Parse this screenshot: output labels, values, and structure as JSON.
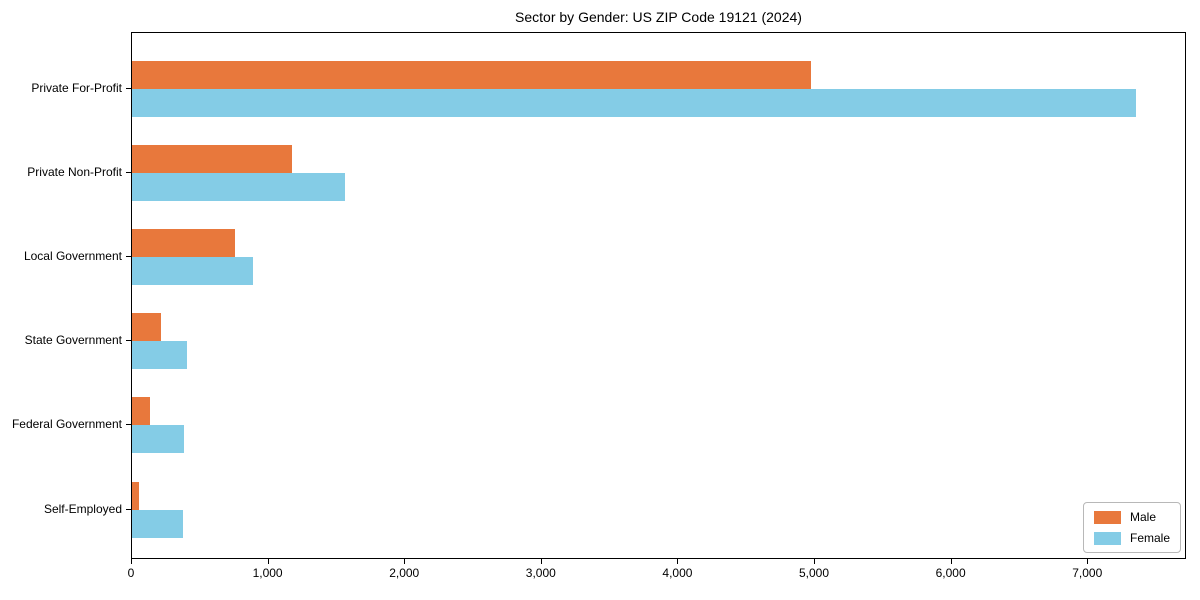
{
  "chart_data": {
    "type": "bar",
    "orientation": "horizontal",
    "title": "Sector by Gender: US ZIP Code 19121 (2024)",
    "categories": [
      "Private For-Profit",
      "Private Non-Profit",
      "Local Government",
      "State Government",
      "Federal Government",
      "Self-Employed"
    ],
    "series": [
      {
        "name": "Male",
        "color": "#E8783C",
        "values": [
          4980,
          1170,
          755,
          215,
          130,
          55
        ]
      },
      {
        "name": "Female",
        "color": "#84CCE6",
        "values": [
          7360,
          1560,
          885,
          400,
          380,
          375
        ]
      }
    ],
    "xlabel": "",
    "ylabel": "",
    "xlim": [
      0,
      7723
    ],
    "xticks": [
      0,
      1000,
      2000,
      3000,
      4000,
      5000,
      6000,
      7000
    ],
    "xtick_labels": [
      "0",
      "1,000",
      "2,000",
      "3,000",
      "4,000",
      "5,000",
      "6,000",
      "7,000"
    ],
    "grid": false,
    "legend": {
      "position": "lower right",
      "entries": [
        "Male",
        "Female"
      ]
    },
    "colors": {
      "axis": "#000000",
      "background": "#ffffff"
    }
  }
}
